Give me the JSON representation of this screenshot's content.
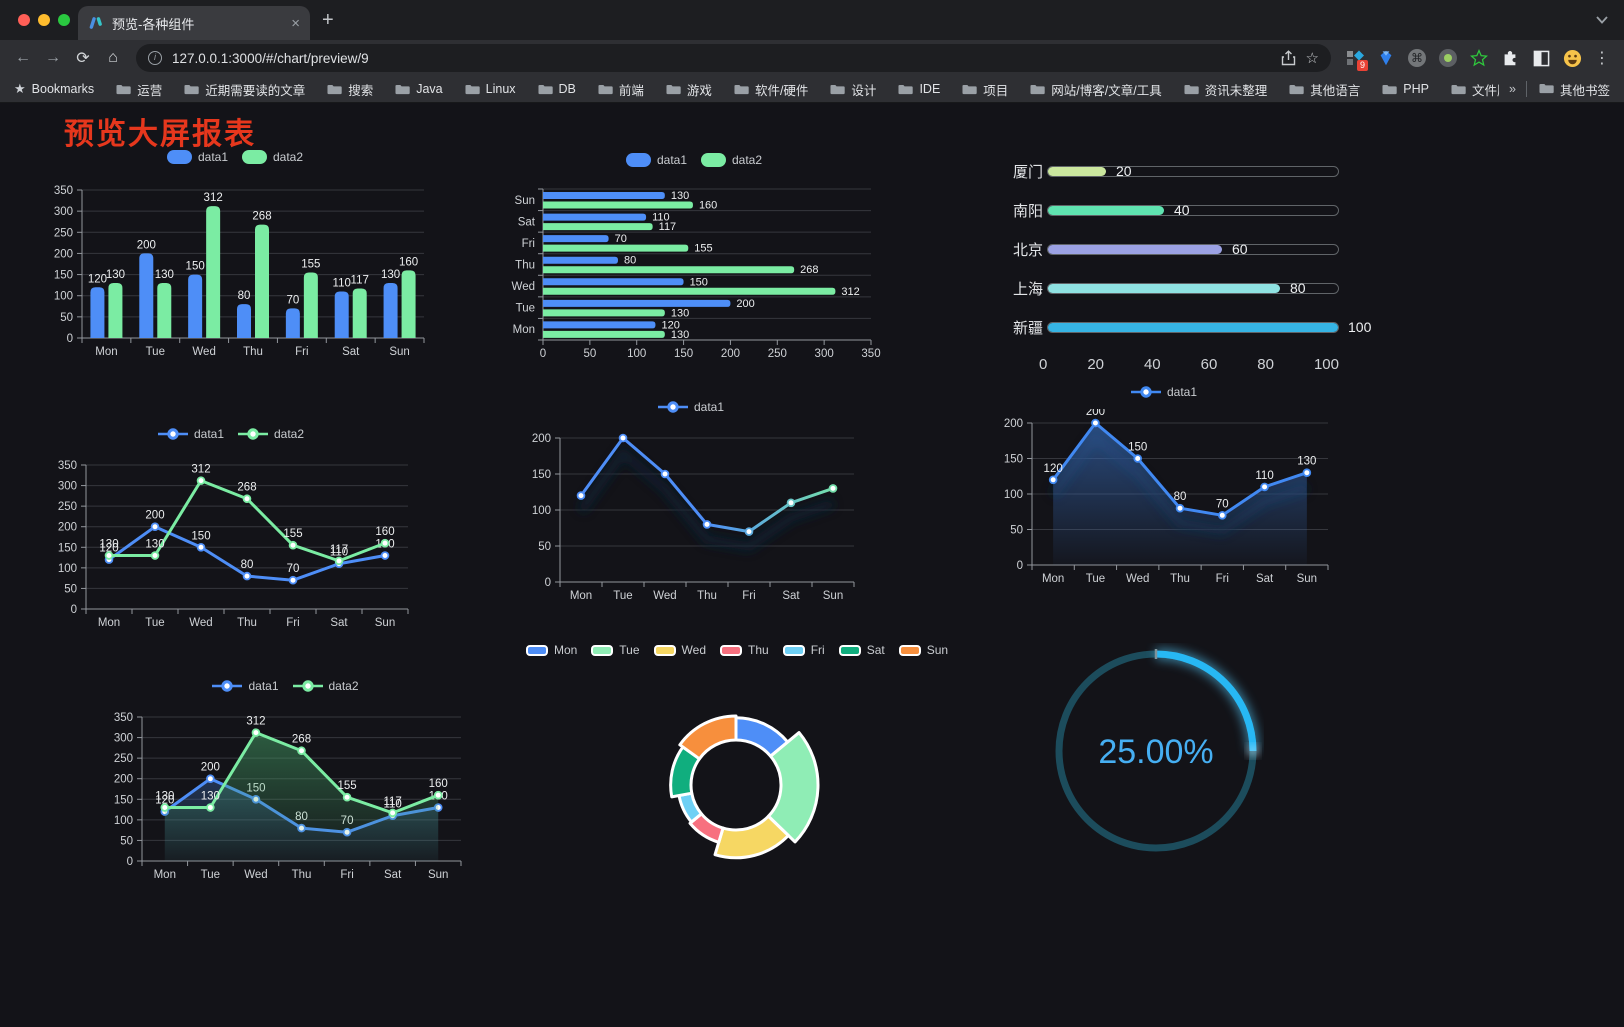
{
  "browser": {
    "tab_title": "预览-各种组件",
    "url": "127.0.0.1:3000/#/chart/preview/9",
    "bookmarks_label": "Bookmarks",
    "bookmarks": [
      "运营",
      "近期需要读的文章",
      "搜索",
      "Java",
      "Linux",
      "DB",
      "前端",
      "游戏",
      "软件/硬件",
      "设计",
      "IDE",
      "项目",
      "网站/博客/文章/工具",
      "资讯未整理",
      "其他语言",
      "PHP",
      "文件服务器"
    ],
    "bookmarks_overflow": "»",
    "other_bookmarks": "其他书签",
    "icons": {
      "close": "×",
      "new_tab": "+",
      "back": "←",
      "forward": "→",
      "reload": "⟳",
      "home": "⌂",
      "info": "i",
      "star": "☆",
      "bookmarks_star": "★",
      "menu": "⋮",
      "command": "⌘",
      "badge": "9"
    },
    "traffic_lights": [
      "#ff5f57",
      "#febc2e",
      "#2ac840"
    ]
  },
  "page": {
    "title": "预览大屏报表",
    "title_color": "#e6371d"
  },
  "chart_data": [
    {
      "id": "grouped-bar",
      "type": "bar",
      "categories": [
        "Mon",
        "Tue",
        "Wed",
        "Thu",
        "Fri",
        "Sat",
        "Sun"
      ],
      "series": [
        {
          "name": "data1",
          "color": "#4e8ef7",
          "values": [
            120,
            200,
            150,
            80,
            70,
            110,
            130
          ]
        },
        {
          "name": "data2",
          "color": "#7beca3",
          "values": [
            130,
            130,
            312,
            268,
            155,
            117,
            160
          ]
        }
      ],
      "ylim": [
        0,
        350
      ],
      "ytick_step": 50,
      "show_labels": true,
      "legend_position": "top",
      "grid": true
    },
    {
      "id": "horizontal-bar",
      "type": "hbar",
      "categories": [
        "Mon",
        "Tue",
        "Wed",
        "Thu",
        "Fri",
        "Sat",
        "Sun"
      ],
      "series": [
        {
          "name": "data1",
          "color": "#4e8ef7",
          "values": [
            120,
            200,
            150,
            80,
            70,
            110,
            130
          ]
        },
        {
          "name": "data2",
          "color": "#7beca3",
          "values": [
            130,
            130,
            312,
            268,
            155,
            117,
            160
          ]
        }
      ],
      "xlim": [
        0,
        350
      ],
      "xtick_step": 50,
      "show_labels": true,
      "legend_position": "top",
      "grid": true
    },
    {
      "id": "city-progress",
      "type": "progress",
      "items": [
        {
          "label": "厦门",
          "value": 20,
          "color": "#cbe79e"
        },
        {
          "label": "南阳",
          "value": 40,
          "color": "#5fe3b0"
        },
        {
          "label": "北京",
          "value": 60,
          "color": "#9ba1e3"
        },
        {
          "label": "上海",
          "value": 80,
          "color": "#8fe2e2"
        },
        {
          "label": "新疆",
          "value": 100,
          "color": "#36b4e4"
        }
      ],
      "xticks": [
        0,
        20,
        40,
        60,
        80,
        100
      ],
      "xlim": [
        0,
        100
      ]
    },
    {
      "id": "two-line",
      "type": "line",
      "categories": [
        "Mon",
        "Tue",
        "Wed",
        "Thu",
        "Fri",
        "Sat",
        "Sun"
      ],
      "series": [
        {
          "name": "data1",
          "color": "#4e8ef7",
          "values": [
            120,
            200,
            150,
            80,
            70,
            110,
            130
          ]
        },
        {
          "name": "data2",
          "color": "#7beca3",
          "values": [
            130,
            130,
            312,
            268,
            155,
            117,
            160
          ]
        }
      ],
      "ylim": [
        0,
        350
      ],
      "ytick_step": 50,
      "show_labels": true,
      "legend_position": "top",
      "grid": true
    },
    {
      "id": "gradient-line",
      "type": "line",
      "categories": [
        "Mon",
        "Tue",
        "Wed",
        "Thu",
        "Fri",
        "Sat",
        "Sun"
      ],
      "series": [
        {
          "name": "data1",
          "color": "#4e8ef7",
          "values": [
            120,
            200,
            150,
            80,
            70,
            110,
            130
          ],
          "line_gradient": [
            "#4e8ef7",
            "#4e8ef7",
            "#7bec9f"
          ],
          "shadow": true
        }
      ],
      "ylim": [
        0,
        200
      ],
      "ytick_step": 50,
      "show_labels": false,
      "legend_position": "top",
      "grid": true
    },
    {
      "id": "area-line",
      "type": "line",
      "categories": [
        "Mon",
        "Tue",
        "Wed",
        "Thu",
        "Fri",
        "Sat",
        "Sun"
      ],
      "series": [
        {
          "name": "data1",
          "color": "#4189f2",
          "values": [
            120,
            200,
            150,
            80,
            70,
            110,
            130
          ],
          "area": [
            "rgba(56,110,190,0.62)",
            "rgba(56,110,190,0.04)"
          ],
          "shadow": true
        }
      ],
      "ylim": [
        0,
        200
      ],
      "ytick_step": 50,
      "show_labels": true,
      "legend_position": "top",
      "grid": true
    },
    {
      "id": "two-area-line",
      "type": "line",
      "categories": [
        "Mon",
        "Tue",
        "Wed",
        "Thu",
        "Fri",
        "Sat",
        "Sun"
      ],
      "series": [
        {
          "name": "data1",
          "color": "#4e8ef7",
          "values": [
            120,
            200,
            150,
            80,
            70,
            110,
            130
          ],
          "area": [
            "rgba(66,120,200,0.55)",
            "rgba(66,120,200,0.04)"
          ]
        },
        {
          "name": "data2",
          "color": "#7beca3",
          "values": [
            130,
            130,
            312,
            268,
            155,
            117,
            160
          ],
          "area": [
            "rgba(70,165,105,0.55)",
            "rgba(70,165,105,0.04)"
          ]
        }
      ],
      "ylim": [
        0,
        350
      ],
      "ytick_step": 50,
      "show_labels": true,
      "legend_position": "top",
      "grid": true
    },
    {
      "id": "weekday-donut",
      "type": "pie",
      "rose": true,
      "categories": [
        "Mon",
        "Tue",
        "Wed",
        "Thu",
        "Fri",
        "Sat",
        "Sun"
      ],
      "values": [
        120,
        200,
        150,
        80,
        70,
        110,
        130
      ],
      "colors": [
        "#4e8ef7",
        "#8fedb5",
        "#f6d763",
        "#f7707f",
        "#6ed0f5",
        "#10ae7e",
        "#f78f3d"
      ],
      "legend_position": "top"
    },
    {
      "id": "percent-gauge",
      "type": "gauge",
      "value": 25,
      "max": 100,
      "display": "25.00%",
      "track_color": "#1c4c5c",
      "arc_color": "#27b8f4",
      "text_color": "#46aff2"
    }
  ]
}
